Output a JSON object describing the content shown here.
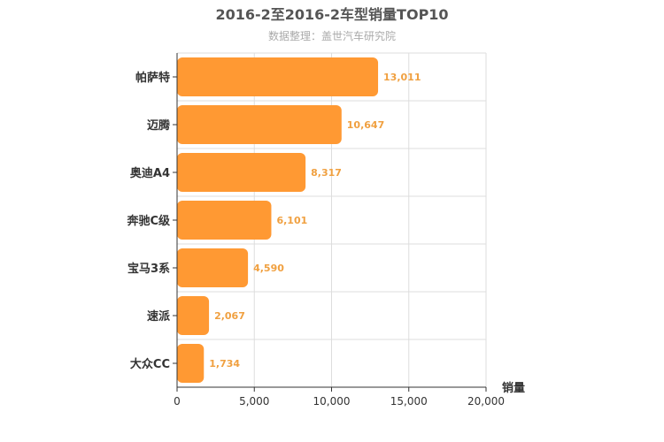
{
  "chart_data": {
    "type": "bar",
    "orientation": "horizontal",
    "title": "2016-2至2016-2车型销量TOP10",
    "subtitle": "数据整理：盖世汽车研究院",
    "categories": [
      "帕萨特",
      "迈腾",
      "奥迪A4",
      "奔驰C级",
      "宝马3系",
      "速派",
      "大众CC"
    ],
    "values": [
      13011,
      10647,
      8317,
      6101,
      4590,
      2067,
      1734
    ],
    "data_labels": [
      "13,011",
      "10,647",
      "8,317",
      "6,101",
      "4,590",
      "2,067",
      "1,734"
    ],
    "xlabel": "销量",
    "ylabel": "",
    "xlim": [
      0,
      20000
    ],
    "x_ticks": [
      0,
      5000,
      10000,
      15000,
      20000
    ],
    "x_tick_labels": [
      "0",
      "5,000",
      "10,000",
      "15,000",
      "20,000"
    ],
    "grid": true,
    "bar_color": "#ff9933",
    "label_color": "#f0a040"
  }
}
